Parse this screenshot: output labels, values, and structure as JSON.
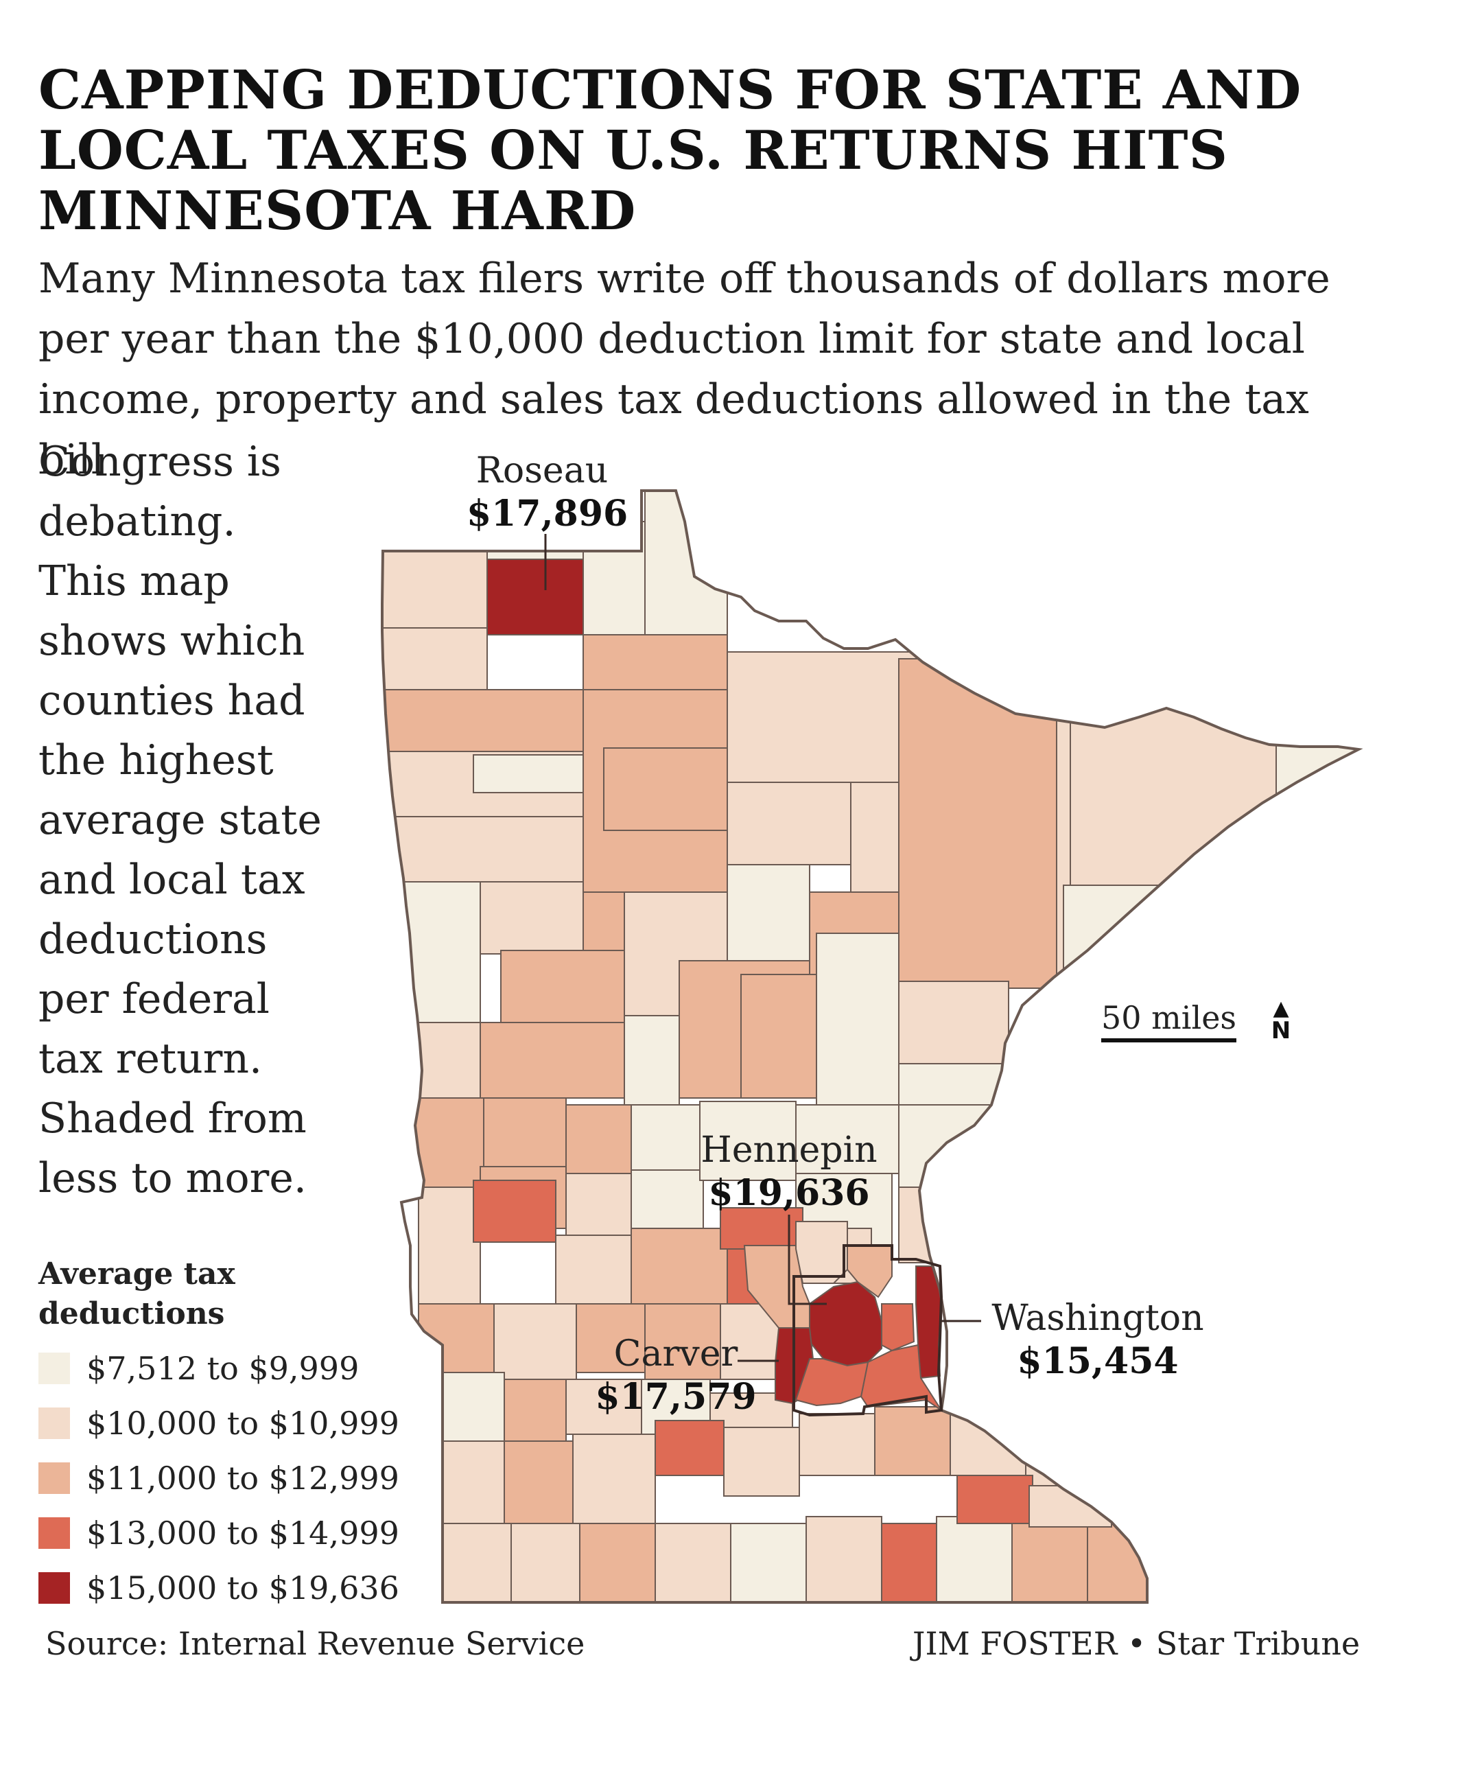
{
  "title": "CAPPING DEDUCTIONS FOR STATE AND LOCAL TAXES ON U.S. RETURNS HITS MINNESOTA HARD",
  "intro_wide": "Many Minnesota tax filers write off thousands of dollars more per year than the $10,000 deduction limit for state and local income, property and sales tax deductions allowed in the tax bill",
  "intro_column": "Congress is debating. This map shows which counties had the highest average state and local tax deductions per federal tax return. Shaded from less to more.",
  "legend": {
    "title": "Average tax deductions",
    "items": [
      {
        "label": "$7,512 to $9,999",
        "color": "#f4efe2"
      },
      {
        "label": "$10,000 to $10,999",
        "color": "#f3dccb"
      },
      {
        "label": "$11,000 to $12,999",
        "color": "#ebb598"
      },
      {
        "label": "$13,000 to $14,999",
        "color": "#de6b55"
      },
      {
        "label": "$15,000 to $19,636",
        "color": "#a52324"
      }
    ]
  },
  "callouts": {
    "roseau": {
      "name": "Roseau",
      "value": "$17,896"
    },
    "hennepin": {
      "name": "Hennepin",
      "value": "$19,636"
    },
    "carver": {
      "name": "Carver",
      "value": "$17,579"
    },
    "washington": {
      "name": "Washington",
      "value": "$15,454"
    }
  },
  "scale": {
    "label": "50 miles",
    "north": "N"
  },
  "source": "Source: Internal Revenue Service",
  "credit": "JIM FOSTER • Star Tribune",
  "colors": {
    "border": "#6b5a52",
    "metro_outline": "#3a2a26",
    "background": "#ffffff"
  }
}
